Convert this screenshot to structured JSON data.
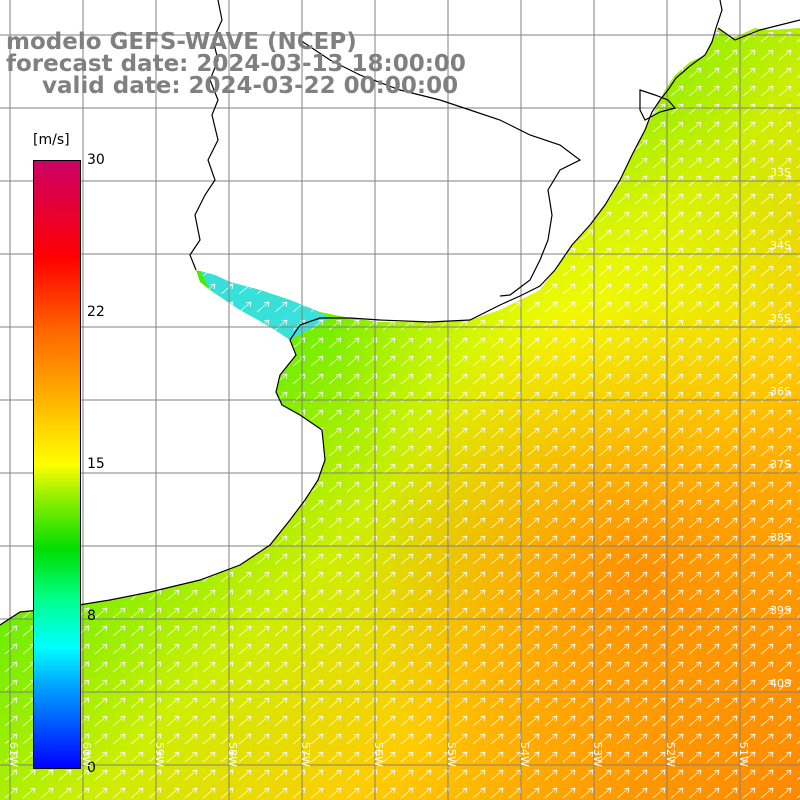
{
  "title": {
    "line1": "modelo GEFS-WAVE (NCEP)",
    "line2": "forecast date: 2024-03-13 18:00:00",
    "line3": "valid date: 2024-03-22 00:00:00"
  },
  "colorbar": {
    "unit": "[m/s]",
    "ticks": [
      "30",
      "22",
      "15",
      "8",
      "0"
    ],
    "stops": [
      "#0000ff",
      "#00ffff",
      "#00dd00",
      "#ffff00",
      "#ff6600",
      "#ff0000",
      "#cc0066"
    ]
  },
  "map": {
    "latitude_labels": [
      "33S",
      "34S",
      "35S",
      "36S",
      "37S",
      "38S",
      "39S",
      "40S"
    ],
    "longitude_labels": [
      "61W",
      "60W",
      "59W",
      "58W",
      "57W",
      "56W",
      "55W",
      "54W",
      "53W",
      "52W",
      "51W"
    ],
    "field": "wind speed",
    "arrow_direction": "southwest to northeast",
    "colors": {
      "land": "#ffffff",
      "grid": "#808080",
      "coast": "#000000",
      "arrow": "#ffffff"
    }
  }
}
